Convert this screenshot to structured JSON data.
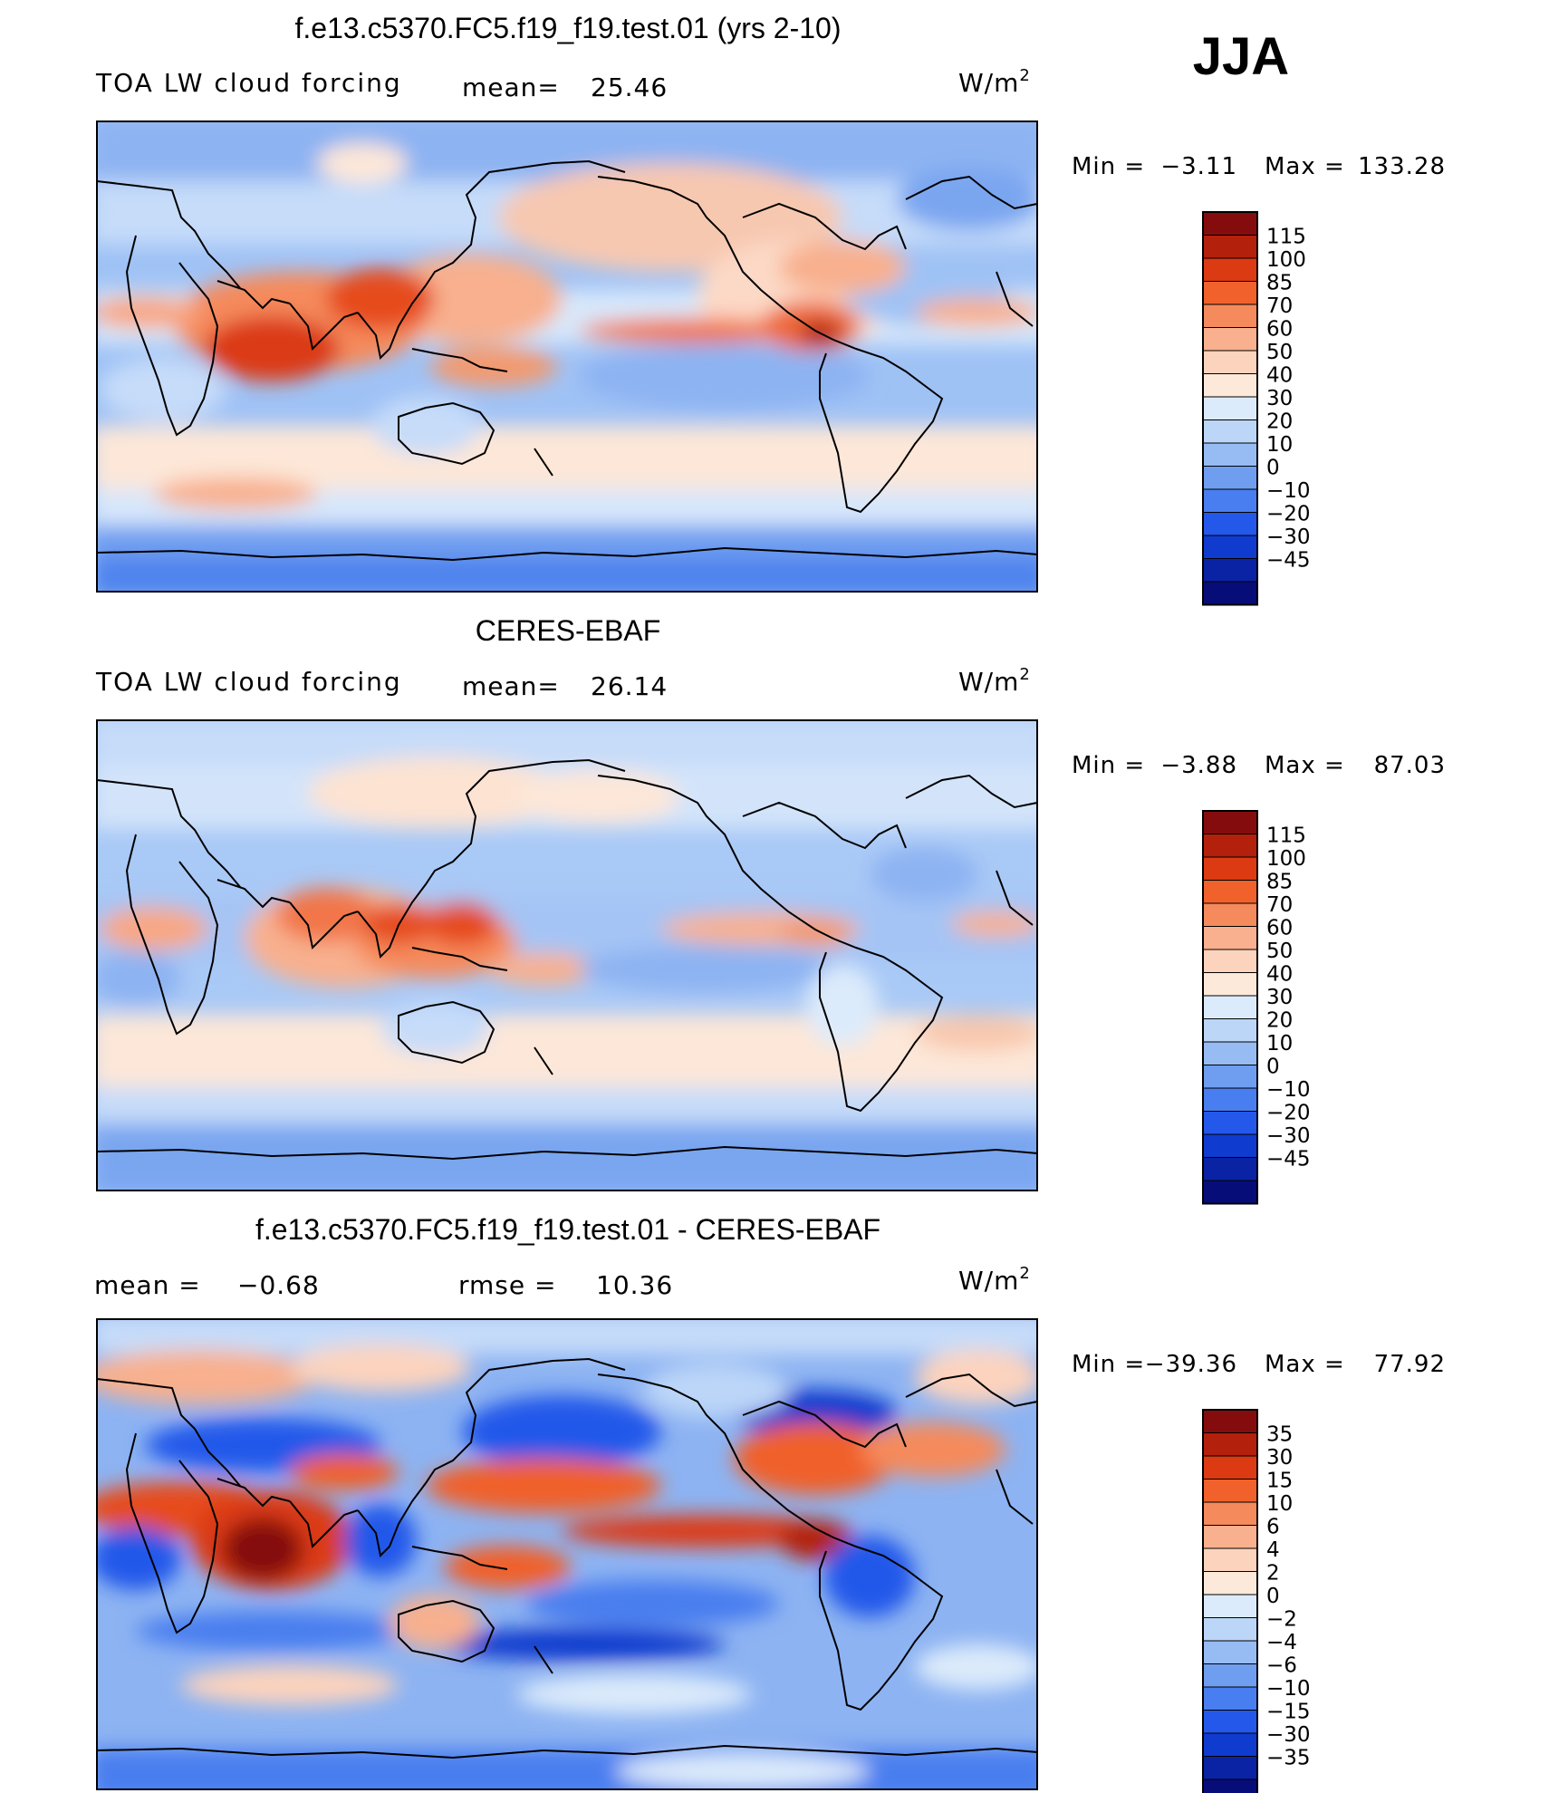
{
  "season": "JJA",
  "panels": [
    {
      "id": "model",
      "title": "f.e13.c5370.FC5.f19_f19.test.01 (yrs 2-10)",
      "left_label": "TOA LW cloud forcing",
      "stat1_label": "mean=",
      "stat1_value": "25.46",
      "stat2_label": "",
      "stat2_value": "",
      "units": "W/m",
      "units_sup": "2",
      "min_label": "Min  =",
      "min_value": "−3.11",
      "max_label": "Max  =",
      "max_value": "133.28"
    },
    {
      "id": "obs",
      "title": "CERES-EBAF",
      "left_label": "TOA LW cloud forcing",
      "stat1_label": "mean=",
      "stat1_value": "26.14",
      "stat2_label": "",
      "stat2_value": "",
      "units": "W/m",
      "units_sup": "2",
      "min_label": "Min  =",
      "min_value": "−3.88",
      "max_label": "Max  =",
      "max_value": "87.03"
    },
    {
      "id": "diff",
      "title": "f.e13.c5370.FC5.f19_f19.test.01 - CERES-EBAF",
      "left_label": "",
      "stat1_label": "mean  =",
      "stat1_value": "−0.68",
      "stat2_label": "rmse  =",
      "stat2_value": "10.36",
      "units": "W/m",
      "units_sup": "2",
      "min_label": "Min  =",
      "min_value": "−39.36",
      "max_label": "Max  =",
      "max_value": "77.92"
    }
  ],
  "chart_data": [
    {
      "type": "heatmap",
      "panel": "model",
      "title": "f.e13.c5370.FC5.f19_f19.test.01 (yrs 2-10)",
      "variable": "TOA LW cloud forcing",
      "units": "W/m2",
      "mean": 25.46,
      "min": -3.11,
      "max": 133.28,
      "colorbar_levels": [
        "115",
        "100",
        "85",
        "70",
        "60",
        "50",
        "40",
        "30",
        "20",
        "10",
        "0",
        "−10",
        "−20",
        "−30",
        "−45"
      ],
      "colorbar_colors": [
        "#850c0c",
        "#b3200c",
        "#db3a12",
        "#f0612c",
        "#f58a5c",
        "#f8b08e",
        "#fcd3bd",
        "#fde9da",
        "#dcebfb",
        "#bcd6f8",
        "#97bcf3",
        "#6f9ef0",
        "#487eef",
        "#2458ea",
        "#0f3bce",
        "#0a23a4",
        "#070d78"
      ]
    },
    {
      "type": "heatmap",
      "panel": "obs",
      "title": "CERES-EBAF",
      "variable": "TOA LW cloud forcing",
      "units": "W/m2",
      "mean": 26.14,
      "min": -3.88,
      "max": 87.03,
      "colorbar_levels": [
        "115",
        "100",
        "85",
        "70",
        "60",
        "50",
        "40",
        "30",
        "20",
        "10",
        "0",
        "−10",
        "−20",
        "−30",
        "−45"
      ],
      "colorbar_colors": [
        "#850c0c",
        "#b3200c",
        "#db3a12",
        "#f0612c",
        "#f58a5c",
        "#f8b08e",
        "#fcd3bd",
        "#fde9da",
        "#dcebfb",
        "#bcd6f8",
        "#97bcf3",
        "#6f9ef0",
        "#487eef",
        "#2458ea",
        "#0f3bce",
        "#0a23a4",
        "#070d78"
      ]
    },
    {
      "type": "heatmap",
      "panel": "diff",
      "title": "f.e13.c5370.FC5.f19_f19.test.01 - CERES-EBAF",
      "units": "W/m2",
      "mean": -0.68,
      "rmse": 10.36,
      "min": -39.36,
      "max": 77.92,
      "colorbar_levels": [
        "35",
        "30",
        "15",
        "10",
        "6",
        "4",
        "2",
        "0",
        "−2",
        "−4",
        "−6",
        "−10",
        "−15",
        "−30",
        "−35"
      ],
      "colorbar_colors": [
        "#850c0c",
        "#b3200c",
        "#db3a12",
        "#f0612c",
        "#f58a5c",
        "#f8b08e",
        "#fcd3bd",
        "#fde9da",
        "#dcebfb",
        "#bcd6f8",
        "#97bcf3",
        "#6f9ef0",
        "#487eef",
        "#2458ea",
        "#0f3bce",
        "#0a23a4",
        "#070d78"
      ]
    }
  ]
}
